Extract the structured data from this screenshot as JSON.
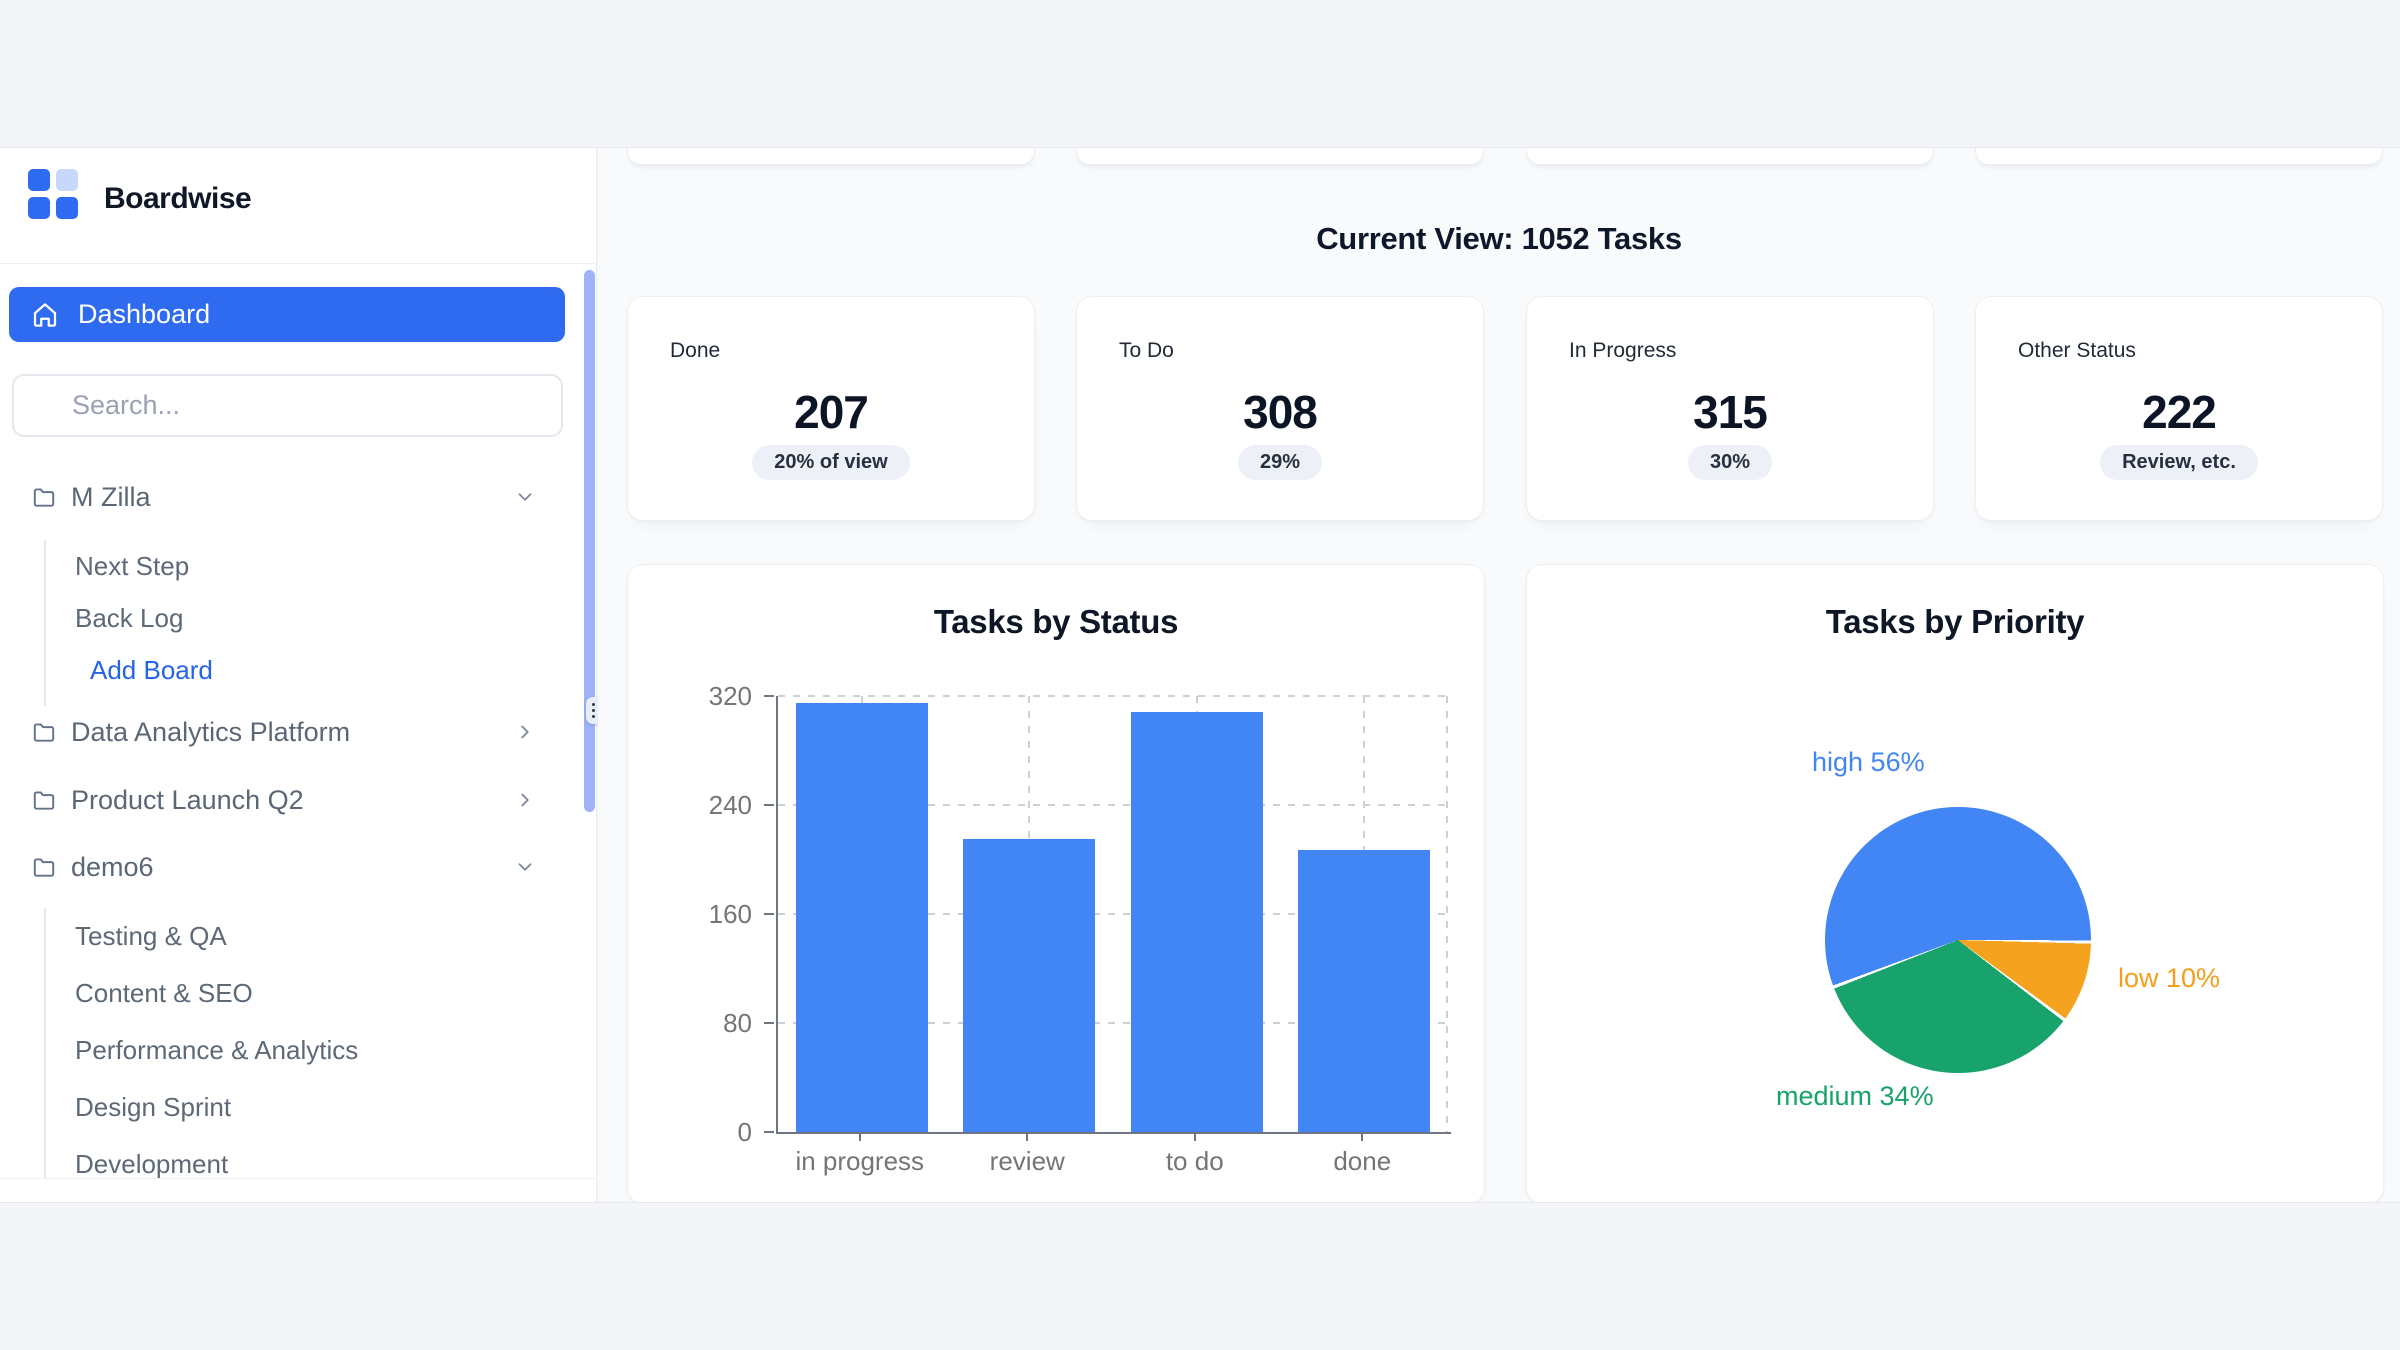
{
  "brand": "Boardwise",
  "sidebar": {
    "dashboard_label": "Dashboard",
    "search": {
      "placeholder": "Search..."
    },
    "boards": [
      {
        "label": "M Zilla",
        "state": "expanded",
        "children": [
          "Next Step",
          "Back Log"
        ],
        "action_label": "Add Board"
      },
      {
        "label": "Data Analytics Platform",
        "state": "collapsed"
      },
      {
        "label": "Product Launch Q2",
        "state": "collapsed"
      },
      {
        "label": "demo6",
        "state": "expanded",
        "children": [
          "Testing & QA",
          "Content & SEO",
          "Performance & Analytics",
          "Design Sprint",
          "Development"
        ]
      }
    ]
  },
  "main": {
    "heading": "Current View: 1052 Tasks",
    "stat_cards": [
      {
        "label": "Done",
        "value": "207",
        "badge": "20% of view"
      },
      {
        "label": "To Do",
        "value": "308",
        "badge": "29%"
      },
      {
        "label": "In Progress",
        "value": "315",
        "badge": "30%"
      },
      {
        "label": "Other Status",
        "value": "222",
        "badge": "Review, etc."
      }
    ]
  },
  "chart_data": [
    {
      "type": "bar",
      "title": "Tasks by Status",
      "categories": [
        "in progress",
        "review",
        "to do",
        "done"
      ],
      "values": [
        315,
        215,
        308,
        207
      ],
      "ylim": [
        0,
        320
      ],
      "yticks": [
        320,
        240,
        160,
        80,
        0
      ],
      "grid": "dashed horizontal and vertical",
      "bar_color": "#4285f4",
      "axis_text_color": "#757575"
    },
    {
      "type": "pie",
      "title": "Tasks by Priority",
      "labels": [
        "high",
        "medium",
        "low"
      ],
      "values": [
        56,
        34,
        10
      ],
      "display_labels": {
        "high": "high 56%",
        "medium": "medium 34%",
        "low": "low 10%"
      },
      "colors": {
        "high": "#4285f4",
        "medium": "#17a36b",
        "low": "#f5a31f"
      },
      "slices_clockwise": [
        {
          "label": "high",
          "pct": 56,
          "color": "#4285f4"
        },
        {
          "label": "low",
          "pct": 10,
          "color": "#f5a31f"
        },
        {
          "label": "medium",
          "pct": 34,
          "color": "#17a36b"
        }
      ],
      "start_angle_deg": -110,
      "legend_position": "labels around pie"
    }
  ],
  "colors": {
    "accent_blue": "#2e6bf0",
    "chart_blue": "#4285f4",
    "chart_green": "#17a36b",
    "chart_orange": "#f5a31f",
    "main_bg": "#f8fafc",
    "letterbox_bg": "#f3f5f8",
    "navy_text": "#0f172a"
  }
}
